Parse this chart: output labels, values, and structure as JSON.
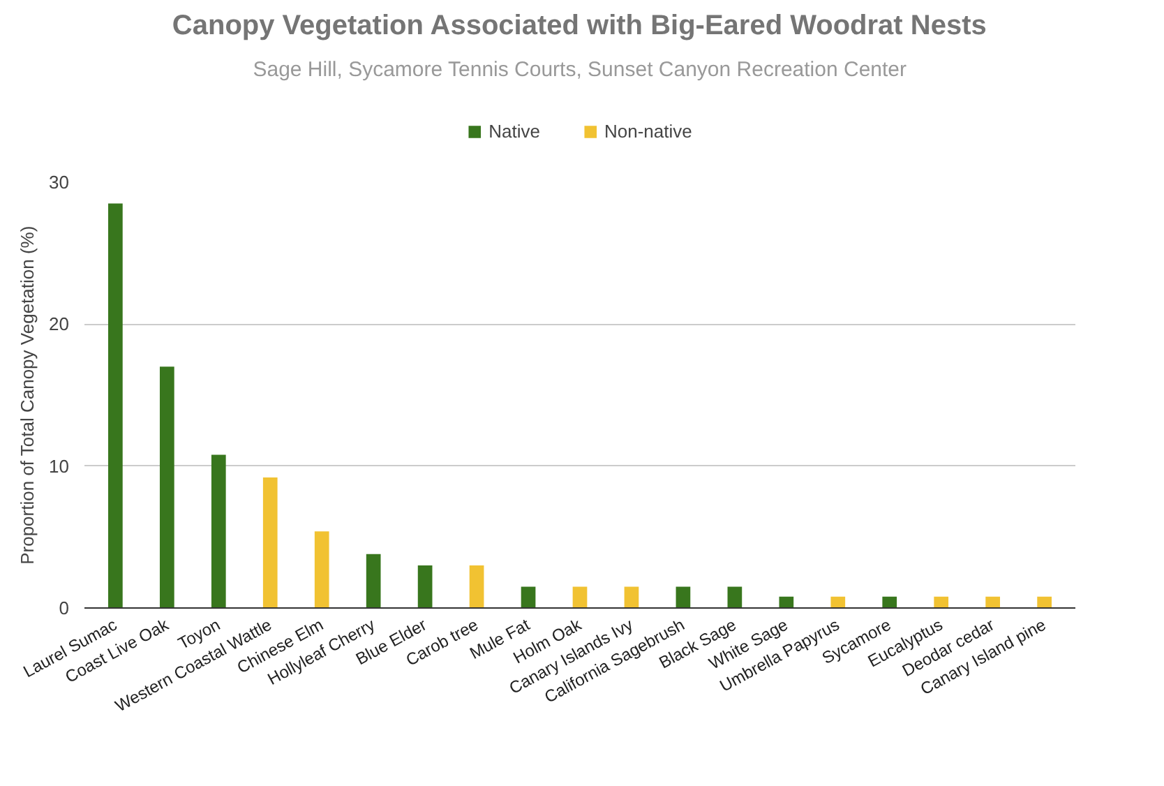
{
  "chart_data": {
    "type": "bar",
    "title": "Canopy Vegetation Associated with Big-Eared Woodrat Nests",
    "subtitle": "Sage Hill, Sycamore Tennis Courts, Sunset Canyon Recreation Center",
    "ylabel": "Proportion of Total Canopy Vegetation (%)",
    "categories": [
      "Laurel Sumac",
      "Coast Live Oak",
      "Toyon",
      "Western Coastal Wattle",
      "Chinese Elm",
      "Hollyleaf Cherry",
      "Blue Elder",
      "Carob tree",
      "Mule Fat",
      "Holm Oak",
      "Canary Islands Ivy",
      "California Sagebrush",
      "Black Sage",
      "White Sage",
      "Umbrella Papyrus",
      "Sycamore",
      "Eucalyptus",
      "Deodar cedar",
      "Canary Island pine"
    ],
    "series": [
      {
        "name": "Native",
        "color": "#38761d",
        "values": [
          28.5,
          17.0,
          10.8,
          null,
          null,
          3.8,
          3.0,
          null,
          1.5,
          null,
          null,
          1.5,
          1.5,
          0.8,
          null,
          0.8,
          null,
          null,
          null
        ]
      },
      {
        "name": "Non-native",
        "color": "#f1c232",
        "values": [
          null,
          null,
          null,
          9.2,
          5.4,
          null,
          null,
          3.0,
          null,
          1.5,
          1.5,
          null,
          null,
          null,
          0.8,
          null,
          0.8,
          0.8,
          0.8
        ]
      }
    ],
    "ylim": [
      0,
      30
    ],
    "yticks": [
      0,
      10,
      20,
      30
    ],
    "grid": "y",
    "legend": "top"
  }
}
